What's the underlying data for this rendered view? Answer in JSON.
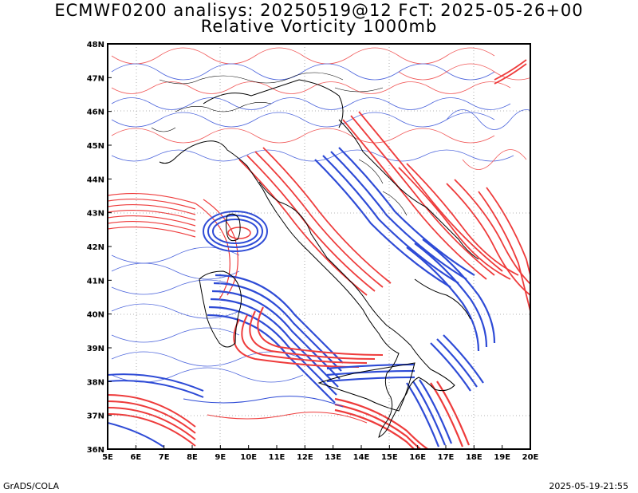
{
  "titles": {
    "line1": "ECMWF0200 analisys: 20250519@12 FcT: 2025-05-26+00",
    "line2": "Relative Vorticity 1000mb"
  },
  "footer": {
    "left": "GrADS/COLA",
    "right": "2025-05-19-21:55"
  },
  "map": {
    "lon_range": [
      5,
      20
    ],
    "lat_range": [
      36,
      48
    ],
    "lon_ticks": [
      "5E",
      "6E",
      "7E",
      "8E",
      "9E",
      "10E",
      "11E",
      "12E",
      "13E",
      "14E",
      "15E",
      "16E",
      "17E",
      "18E",
      "19E",
      "20E"
    ],
    "lat_ticks": [
      "36N",
      "37N",
      "38N",
      "39N",
      "40N",
      "41N",
      "42N",
      "43N",
      "44N",
      "45N",
      "46N",
      "47N",
      "48N"
    ],
    "colors": {
      "positive": "#ee3b3b",
      "negative": "#2e4bd6",
      "coast": "#000000",
      "grid": "#9a9a9a"
    }
  }
}
